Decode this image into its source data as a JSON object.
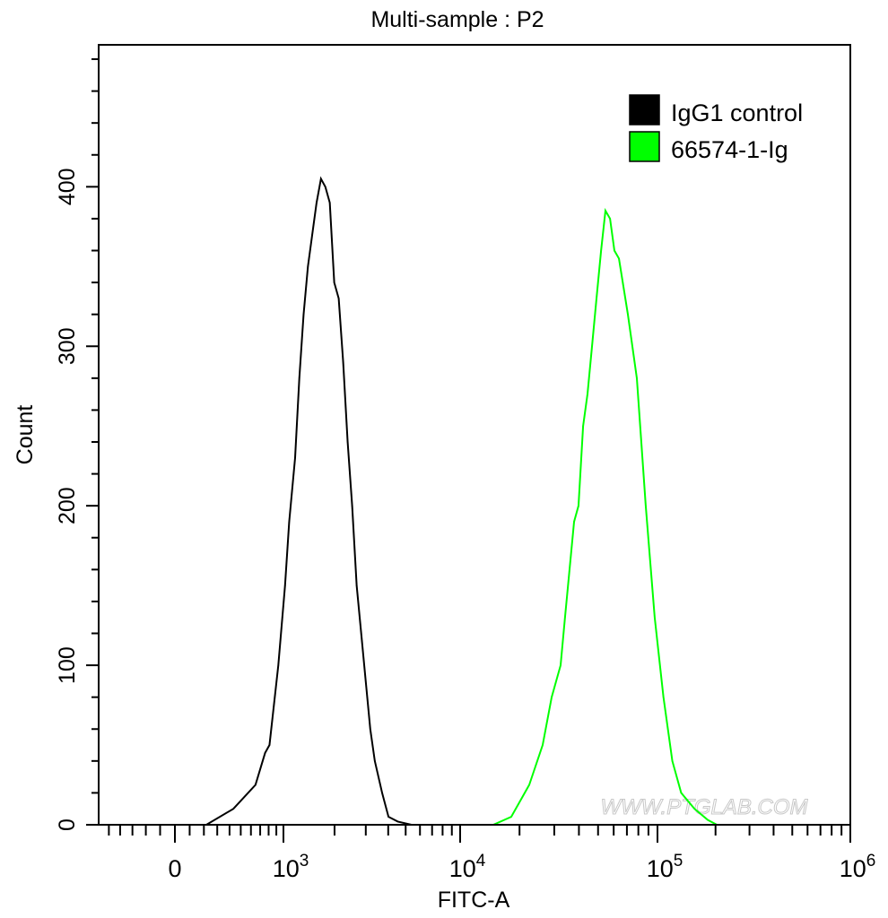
{
  "chart_data": {
    "type": "line",
    "title": "Multi-sample : P2",
    "xlabel": "FITC-A",
    "ylabel": "Count",
    "x_scale": "biexponential",
    "xlim": [
      -600,
      1000000
    ],
    "ylim": [
      0,
      489
    ],
    "grid": false,
    "legend_position": "top-right",
    "x_ticks": [
      {
        "value": 0,
        "base": "0",
        "exp": ""
      },
      {
        "value": 1000,
        "base": "10",
        "exp": "3"
      },
      {
        "value": 10000,
        "base": "10",
        "exp": "4"
      },
      {
        "value": 100000,
        "base": "10",
        "exp": "5"
      },
      {
        "value": 1000000,
        "base": "10",
        "exp": "6"
      }
    ],
    "y_ticks": [
      "0",
      "100",
      "200",
      "300",
      "400"
    ],
    "watermark": "WWW.PTGLAB.COM",
    "series": [
      {
        "name": "IgG1 control",
        "color": "#000000",
        "x": [
          218,
          433,
          648,
          757,
          811,
          927,
          1023,
          1085,
          1178,
          1249,
          1324,
          1404,
          1488,
          1577,
          1672,
          1772,
          1879,
          1992,
          2112,
          2239,
          2373,
          2516,
          2667,
          2828,
          2998,
          3178,
          3369,
          3700,
          4015,
          4519,
          5380
        ],
        "y": [
          0,
          10,
          25,
          45,
          50,
          100,
          150,
          190,
          230,
          280,
          320,
          350,
          370,
          390,
          405,
          400,
          390,
          340,
          330,
          290,
          240,
          200,
          150,
          120,
          90,
          60,
          40,
          20,
          5,
          2,
          0
        ]
      },
      {
        "name": "66574-1-Ig",
        "color": "#00ff00",
        "x": [
          8590,
          14730,
          18160,
          22400,
          26200,
          29100,
          32300,
          34000,
          37800,
          39800,
          42000,
          44200,
          46600,
          49100,
          51800,
          54500,
          57500,
          60500,
          63800,
          70800,
          78600,
          82800,
          87200,
          96800,
          107400,
          119400,
          132700,
          155600,
          182400,
          203300
        ],
        "y": [
          0,
          0,
          5,
          25,
          50,
          80,
          100,
          130,
          190,
          200,
          250,
          270,
          300,
          330,
          360,
          385,
          380,
          360,
          355,
          320,
          280,
          240,
          200,
          130,
          80,
          40,
          20,
          10,
          3,
          0
        ]
      }
    ]
  }
}
